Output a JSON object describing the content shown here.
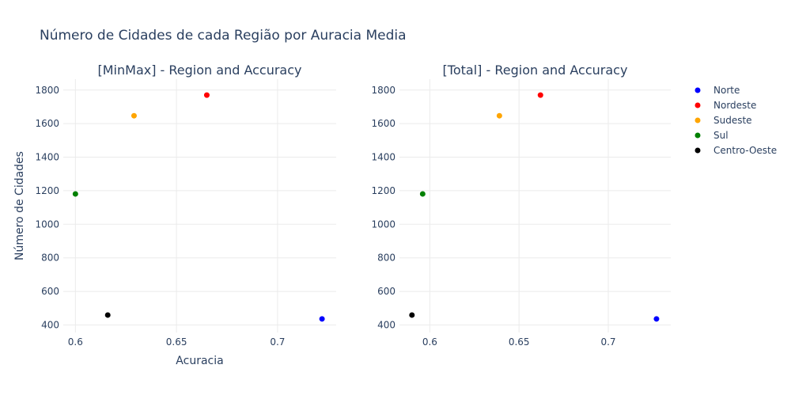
{
  "title": "Número de Cidades de cada Região por Auracia Media",
  "colors": {
    "Norte": "#0000ff",
    "Nordeste": "#ff0000",
    "Sudeste": "#ffa500",
    "Sul": "#008000",
    "Centro-Oeste": "#000000"
  },
  "chart_data": [
    {
      "type": "scatter",
      "title": "[MinMax] - Region and Accuracy",
      "xlabel": "Acuracia",
      "ylabel": "Número de Cidades",
      "xlim": [
        0.594,
        0.729
      ],
      "ylim": [
        355,
        1865
      ],
      "xticks": [
        0.6,
        0.65,
        0.7
      ],
      "xtick_labels": [
        "0.6",
        "0.65",
        "0.7"
      ],
      "yticks": [
        400,
        600,
        800,
        1000,
        1200,
        1400,
        1600,
        1800
      ],
      "series": [
        {
          "name": "Norte",
          "x": [
            0.722
          ],
          "y": [
            436
          ]
        },
        {
          "name": "Nordeste",
          "x": [
            0.665
          ],
          "y": [
            1770
          ]
        },
        {
          "name": "Sudeste",
          "x": [
            0.629
          ],
          "y": [
            1647
          ]
        },
        {
          "name": "Sul",
          "x": [
            0.6
          ],
          "y": [
            1181
          ]
        },
        {
          "name": "Centro-Oeste",
          "x": [
            0.616
          ],
          "y": [
            459
          ]
        }
      ]
    },
    {
      "type": "scatter",
      "title": "[Total] - Region and Accuracy",
      "xlabel": "",
      "ylabel": "",
      "xlim": [
        0.583,
        0.735
      ],
      "ylim": [
        355,
        1865
      ],
      "xticks": [
        0.6,
        0.65,
        0.7
      ],
      "xtick_labels": [
        "0.6",
        "0.65",
        "0.7"
      ],
      "yticks": [
        400,
        600,
        800,
        1000,
        1200,
        1400,
        1600,
        1800
      ],
      "series": [
        {
          "name": "Norte",
          "x": [
            0.727
          ],
          "y": [
            436
          ]
        },
        {
          "name": "Nordeste",
          "x": [
            0.662
          ],
          "y": [
            1770
          ]
        },
        {
          "name": "Sudeste",
          "x": [
            0.639
          ],
          "y": [
            1647
          ]
        },
        {
          "name": "Sul",
          "x": [
            0.596
          ],
          "y": [
            1181
          ]
        },
        {
          "name": "Centro-Oeste",
          "x": [
            0.59
          ],
          "y": [
            459
          ]
        }
      ]
    }
  ],
  "legend": {
    "position": "right",
    "items": [
      "Norte",
      "Nordeste",
      "Sudeste",
      "Sul",
      "Centro-Oeste"
    ]
  }
}
